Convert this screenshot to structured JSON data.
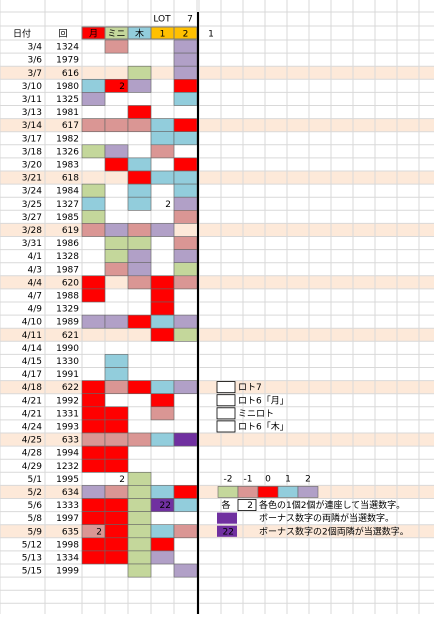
{
  "header": {
    "lot": "LOT",
    "seven": "7",
    "date": "日付",
    "round": "回",
    "cols": [
      {
        "label": "月",
        "color": "R"
      },
      {
        "label": "ミニ",
        "color": "G"
      },
      {
        "label": "木",
        "color": "L"
      },
      {
        "label": "1",
        "color": "O"
      },
      {
        "label": "2",
        "color": "O"
      }
    ],
    "extra": "1"
  },
  "palette": {
    "R": "#ff0000",
    "P": "#da9694",
    "L": "#92cddc",
    "G": "#c4d79b",
    "V": "#b1a0c7",
    "D": "#7030a0",
    "O": "#ffc000",
    "H": "#fde9d9"
  },
  "rows": [
    {
      "date": "3/4",
      "round": "1324",
      "cells": [
        null,
        {
          "color": "P"
        },
        null,
        null,
        {
          "color": "V"
        }
      ]
    },
    {
      "date": "3/6",
      "round": "1979",
      "cells": [
        null,
        null,
        null,
        null,
        {
          "color": "V"
        }
      ]
    },
    {
      "date": "3/7",
      "round": "616",
      "highlight": true,
      "cells": [
        null,
        null,
        {
          "color": "G"
        },
        null,
        {
          "color": "V"
        }
      ]
    },
    {
      "date": "3/10",
      "round": "1980",
      "cells": [
        {
          "color": "L"
        },
        {
          "color": "R",
          "text": "2"
        },
        {
          "color": "V"
        },
        null,
        {
          "color": "R"
        }
      ]
    },
    {
      "date": "3/11",
      "round": "1325",
      "cells": [
        {
          "color": "V"
        },
        null,
        null,
        null,
        {
          "color": "L"
        }
      ]
    },
    {
      "date": "3/13",
      "round": "1981",
      "cells": [
        null,
        null,
        {
          "color": "R"
        },
        null,
        null
      ]
    },
    {
      "date": "3/14",
      "round": "617",
      "highlight": true,
      "cells": [
        {
          "color": "P"
        },
        {
          "color": "P"
        },
        {
          "color": "P"
        },
        {
          "color": "L"
        },
        {
          "color": "R"
        }
      ]
    },
    {
      "date": "3/17",
      "round": "1982",
      "cells": [
        null,
        null,
        null,
        {
          "color": "L"
        },
        {
          "color": "L"
        }
      ]
    },
    {
      "date": "3/18",
      "round": "1326",
      "cells": [
        {
          "color": "G"
        },
        {
          "color": "V"
        },
        null,
        {
          "color": "P"
        },
        null
      ]
    },
    {
      "date": "3/20",
      "round": "1983",
      "cells": [
        null,
        {
          "color": "R"
        },
        {
          "color": "L"
        },
        null,
        {
          "color": "R"
        }
      ]
    },
    {
      "date": "3/21",
      "round": "618",
      "highlight": true,
      "cells": [
        null,
        null,
        {
          "color": "R"
        },
        {
          "color": "L"
        },
        {
          "color": "L"
        }
      ]
    },
    {
      "date": "3/24",
      "round": "1984",
      "cells": [
        {
          "color": "G"
        },
        null,
        {
          "color": "L"
        },
        null,
        {
          "color": "L"
        }
      ]
    },
    {
      "date": "3/25",
      "round": "1327",
      "cells": [
        {
          "color": "L"
        },
        null,
        {
          "color": "L"
        },
        {
          "text": "2"
        },
        {
          "color": "V"
        }
      ]
    },
    {
      "date": "3/27",
      "round": "1985",
      "cells": [
        {
          "color": "G"
        },
        null,
        null,
        null,
        {
          "color": "P"
        }
      ]
    },
    {
      "date": "3/28",
      "round": "619",
      "highlight": true,
      "cells": [
        {
          "color": "P"
        },
        {
          "color": "V"
        },
        {
          "color": "P"
        },
        {
          "color": "V"
        },
        null
      ]
    },
    {
      "date": "3/31",
      "round": "1986",
      "cells": [
        null,
        {
          "color": "G"
        },
        {
          "color": "G"
        },
        null,
        {
          "color": "P"
        }
      ]
    },
    {
      "date": "4/1",
      "round": "1328",
      "cells": [
        null,
        {
          "color": "G"
        },
        {
          "color": "V"
        },
        null,
        {
          "color": "V"
        }
      ]
    },
    {
      "date": "4/3",
      "round": "1987",
      "cells": [
        null,
        {
          "color": "P"
        },
        {
          "color": "V"
        },
        null,
        {
          "color": "G"
        }
      ]
    },
    {
      "date": "4/4",
      "round": "620",
      "highlight": true,
      "cells": [
        {
          "color": "R"
        },
        null,
        {
          "color": "P"
        },
        {
          "color": "R"
        },
        {
          "color": "P"
        }
      ]
    },
    {
      "date": "4/7",
      "round": "1988",
      "cells": [
        {
          "color": "R"
        },
        null,
        null,
        {
          "color": "R"
        },
        null
      ]
    },
    {
      "date": "4/9",
      "round": "1329",
      "cells": [
        null,
        null,
        null,
        {
          "color": "R"
        },
        null
      ]
    },
    {
      "date": "4/10",
      "round": "1989",
      "cells": [
        {
          "color": "V"
        },
        {
          "color": "V"
        },
        {
          "color": "R"
        },
        {
          "color": "L"
        },
        {
          "color": "V"
        }
      ]
    },
    {
      "date": "4/11",
      "round": "621",
      "highlight": true,
      "cells": [
        null,
        null,
        null,
        {
          "color": "R"
        },
        {
          "color": "G"
        }
      ]
    },
    {
      "date": "4/14",
      "round": "1990",
      "cells": [
        null,
        null,
        null,
        null,
        null
      ]
    },
    {
      "date": "4/15",
      "round": "1330",
      "cells": [
        null,
        {
          "color": "L"
        },
        null,
        null,
        null
      ]
    },
    {
      "date": "4/17",
      "round": "1991",
      "cells": [
        null,
        {
          "color": "L"
        },
        null,
        null,
        null
      ]
    },
    {
      "date": "4/18",
      "round": "622",
      "highlight": true,
      "cells": [
        {
          "color": "R"
        },
        {
          "color": "P"
        },
        {
          "color": "R"
        },
        {
          "color": "L"
        },
        {
          "color": "V"
        }
      ]
    },
    {
      "date": "4/21",
      "round": "1992",
      "cells": [
        {
          "color": "R"
        },
        null,
        null,
        {
          "color": "R"
        },
        null
      ]
    },
    {
      "date": "4/21",
      "round": "1331",
      "cells": [
        {
          "color": "R"
        },
        {
          "color": "R"
        },
        null,
        {
          "color": "P"
        },
        null
      ]
    },
    {
      "date": "4/24",
      "round": "1993",
      "cells": [
        {
          "color": "R"
        },
        {
          "color": "R"
        },
        null,
        null,
        null
      ]
    },
    {
      "date": "4/25",
      "round": "633",
      "highlight": true,
      "cells": [
        {
          "color": "P"
        },
        {
          "color": "P"
        },
        {
          "color": "P"
        },
        {
          "color": "L"
        },
        {
          "color": "D"
        }
      ]
    },
    {
      "date": "4/28",
      "round": "1994",
      "cells": [
        {
          "color": "R"
        },
        {
          "color": "R"
        },
        null,
        null,
        null
      ]
    },
    {
      "date": "4/29",
      "round": "1232",
      "cells": [
        {
          "color": "R"
        },
        {
          "color": "R"
        },
        null,
        null,
        null
      ]
    },
    {
      "date": "5/1",
      "round": "1995",
      "cells": [
        null,
        {
          "text": "2"
        },
        {
          "color": "G"
        },
        null,
        null
      ]
    },
    {
      "date": "5/2",
      "round": "634",
      "highlight": true,
      "cells": [
        {
          "color": "V"
        },
        {
          "color": "P"
        },
        {
          "color": "G"
        },
        {
          "color": "L"
        },
        {
          "color": "R"
        }
      ]
    },
    {
      "date": "5/6",
      "round": "1333",
      "cells": [
        {
          "color": "R"
        },
        {
          "color": "R"
        },
        {
          "color": "G"
        },
        {
          "color": "D",
          "text": "22"
        },
        {
          "color": "L"
        }
      ]
    },
    {
      "date": "5/8",
      "round": "1997",
      "cells": [
        {
          "color": "R"
        },
        {
          "color": "R"
        },
        {
          "color": "G"
        },
        null,
        null
      ]
    },
    {
      "date": "5/9",
      "round": "635",
      "highlight": true,
      "cells": [
        {
          "color": "P",
          "text": "2"
        },
        {
          "color": "R"
        },
        {
          "color": "G"
        },
        {
          "color": "L"
        },
        {
          "color": "P"
        }
      ]
    },
    {
      "date": "5/12",
      "round": "1998",
      "cells": [
        {
          "color": "R"
        },
        {
          "color": "R"
        },
        {
          "color": "G"
        },
        {
          "color": "R"
        },
        null
      ]
    },
    {
      "date": "5/13",
      "round": "1334",
      "cells": [
        {
          "color": "R"
        },
        {
          "color": "R"
        },
        {
          "color": "G"
        },
        {
          "color": "V"
        },
        null
      ]
    },
    {
      "date": "5/15",
      "round": "1999",
      "cells": [
        null,
        null,
        {
          "color": "G"
        },
        null,
        {
          "color": "V"
        }
      ]
    }
  ],
  "legend": {
    "items": [
      "ロト7",
      "ロト6「月」",
      "ミニロト",
      "ロト6「木」"
    ]
  },
  "scale": [
    {
      "label": "-2",
      "color": "G"
    },
    {
      "label": "-1",
      "color": "P"
    },
    {
      "label": "0",
      "color": "R"
    },
    {
      "label": "1",
      "color": "L"
    },
    {
      "label": "2",
      "color": "V"
    }
  ],
  "notes": [
    {
      "prefix": "各",
      "box": "2",
      "text": "各色の1個2個が連座して当選数字。"
    },
    {
      "color": "D",
      "text": "ボーナス数字の両隣が当選数字。"
    },
    {
      "color": "D",
      "box": "22",
      "text": "ボーナス数字の2個両隣が当選数字。"
    }
  ]
}
